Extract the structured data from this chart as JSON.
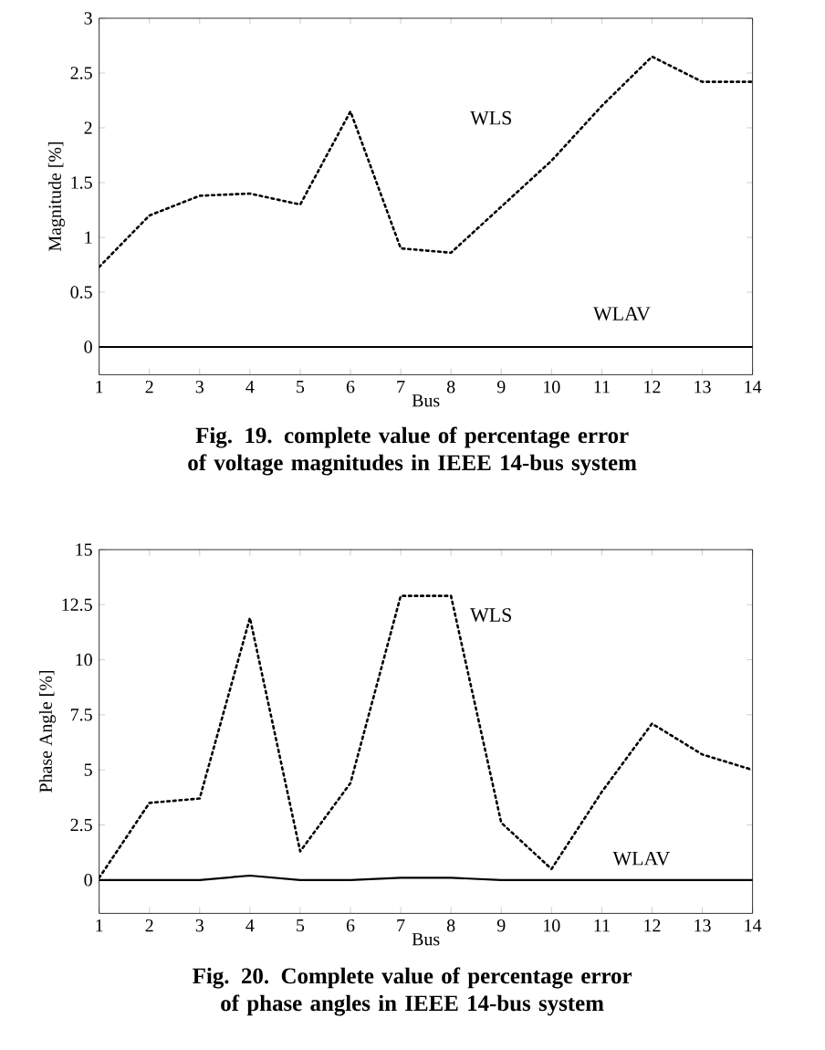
{
  "chart_data": [
    {
      "type": "line",
      "categories": [
        "1",
        "2",
        "3",
        "4",
        "5",
        "6",
        "7",
        "8",
        "9",
        "10",
        "11",
        "12",
        "13",
        "14"
      ],
      "xlabel": "Bus",
      "ylabel": "Magnitude [%]",
      "ylim": [
        -0.25,
        3
      ],
      "yticks": [
        0,
        0.5,
        1,
        1.5,
        2,
        2.5,
        3
      ],
      "grid": false,
      "legend": false,
      "marker": "none",
      "series": [
        {
          "name": "WLS",
          "color": "#000000",
          "line_style": "dotted",
          "values": [
            0.73,
            1.2,
            1.38,
            1.4,
            1.3,
            2.15,
            0.9,
            0.86,
            1.28,
            1.7,
            2.2,
            2.65,
            2.42,
            2.42
          ]
        },
        {
          "name": "WLAV",
          "color": "#000000",
          "line_style": "solid",
          "values": [
            0,
            0,
            0,
            0,
            0,
            0,
            0,
            0,
            0,
            0,
            0,
            0,
            0,
            0
          ]
        }
      ],
      "annotations": [
        "**Fig. 19.  complete value of percentage error of voltage magnitudes in IEEE 14-bus system**"
      ]
    },
    {
      "type": "line",
      "categories": [
        "1",
        "2",
        "3",
        "4",
        "5",
        "6",
        "7",
        "8",
        "9",
        "10",
        "11",
        "12",
        "13",
        "14"
      ],
      "xlabel": "Bus",
      "ylabel": "Phase Angle [%]",
      "ylim": [
        -1.5,
        15
      ],
      "yticks": [
        0,
        2.5,
        5,
        7.5,
        10,
        12.5,
        15
      ],
      "grid": false,
      "legend": false,
      "marker": "none",
      "series": [
        {
          "name": "WLS",
          "color": "#000000",
          "line_style": "dotted",
          "values": [
            0.1,
            3.5,
            3.7,
            11.9,
            1.3,
            4.4,
            12.9,
            12.9,
            2.6,
            0.5,
            4.0,
            7.1,
            5.7,
            5.0
          ]
        },
        {
          "name": "WLAV",
          "color": "#000000",
          "line_style": "solid",
          "values": [
            0,
            0,
            0,
            0.2,
            0,
            0,
            0.1,
            0.1,
            0,
            0,
            0,
            0,
            0,
            0
          ]
        }
      ],
      "annotations": [
        "**Fig. 20.  Complete value of percentage error of phase angles in IEEE 14-bus system**"
      ]
    }
  ]
}
